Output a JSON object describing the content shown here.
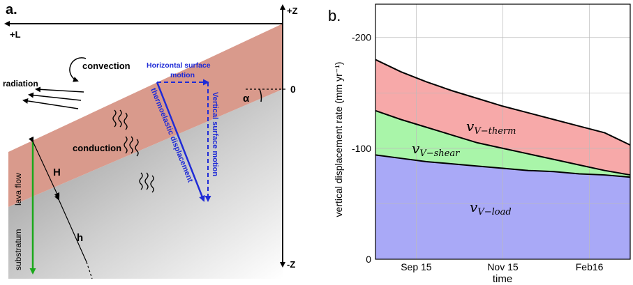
{
  "panel_a": {
    "label": "a.",
    "axis_plus_z": "+Z",
    "axis_minus_z": "-Z",
    "axis_plus_l": "+L",
    "zero_label": "0",
    "alpha_label": "α",
    "convection": "convection",
    "radiation": "radiation",
    "conduction": "conduction",
    "horizontal_motion_line1": "Horizontal surface",
    "horizontal_motion_line2": "motion",
    "vertical_motion": "Vertical surface motion",
    "thermoelastic": "thermoelastic displacement",
    "H_label": "H",
    "h_label": "h",
    "lava_flow": "lava flow",
    "substratum": "substratum",
    "colors": {
      "lava": "#d99a8c",
      "substratum": "#a8a8a8",
      "blue": "#1f2bd6",
      "green": "#1aa81a"
    }
  },
  "panel_b": {
    "label": "b."
  },
  "chart_data": {
    "type": "area",
    "xlabel": "time",
    "ylabel": "vertical displacement rate (mm yr⁻¹)",
    "x_ticks": [
      "Sep 15",
      "Nov 15",
      "Feb16"
    ],
    "y_ticks": [
      -200,
      -100,
      0
    ],
    "ylim": [
      0,
      -230
    ],
    "x": [
      0,
      0.1,
      0.2,
      0.3,
      0.4,
      0.5,
      0.6,
      0.7,
      0.8,
      0.9,
      1.0
    ],
    "series": [
      {
        "name": "v_{V-load}",
        "label_main": "v",
        "label_sub": "V−load",
        "values": [
          -94,
          -91,
          -88,
          -86,
          -84,
          -82,
          -80,
          -79,
          -77,
          -76,
          -74
        ],
        "color": "#a9a9f7"
      },
      {
        "name": "v_{V-shear}",
        "label_main": "v",
        "label_sub": "V−shear",
        "values": [
          -134,
          -126,
          -119,
          -112,
          -105,
          -100,
          -95,
          -90,
          -85,
          -80,
          -76
        ],
        "color": "#a9f5a9"
      },
      {
        "name": "v_{V-therm}",
        "label_main": "v",
        "label_sub": "V−therm",
        "values": [
          -180,
          -169,
          -160,
          -152,
          -145,
          -138,
          -132,
          -126,
          -120,
          -114,
          -103
        ],
        "color": "#f7a9a9"
      }
    ],
    "grid": true
  }
}
